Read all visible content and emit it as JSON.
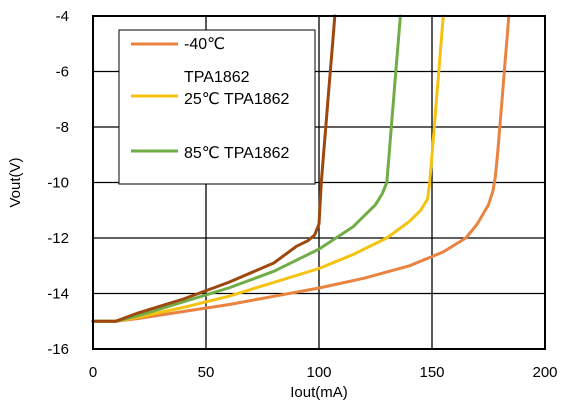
{
  "chart_data": {
    "type": "line",
    "title": "",
    "xlabel": "Iout(mA)",
    "ylabel": "Vout(V)",
    "xlim": [
      0,
      200
    ],
    "ylim": [
      -16,
      -4
    ],
    "xticks": [
      0,
      50,
      100,
      150,
      200
    ],
    "yticks": [
      -4,
      -6,
      -8,
      -10,
      -12,
      -14,
      -16
    ],
    "grid": true,
    "legend_position": "top-left",
    "series": [
      {
        "name": "-40℃ TPA1862",
        "color": "#e9833f",
        "points": [
          [
            0,
            -15
          ],
          [
            10,
            -15
          ],
          [
            20,
            -14.9
          ],
          [
            40,
            -14.65
          ],
          [
            60,
            -14.4
          ],
          [
            80,
            -14.1
          ],
          [
            100,
            -13.8
          ],
          [
            120,
            -13.45
          ],
          [
            140,
            -13.0
          ],
          [
            155,
            -12.5
          ],
          [
            165,
            -12.0
          ],
          [
            170,
            -11.5
          ],
          [
            175,
            -10.8
          ],
          [
            177,
            -10.3
          ],
          [
            178,
            -9.8
          ],
          [
            179,
            -9
          ],
          [
            180,
            -8
          ],
          [
            181,
            -7
          ],
          [
            182,
            -6
          ],
          [
            183,
            -5
          ],
          [
            184,
            -4
          ]
        ]
      },
      {
        "name": "25℃ TPA1862",
        "color": "#f5c210",
        "points": [
          [
            0,
            -15
          ],
          [
            10,
            -15
          ],
          [
            20,
            -14.85
          ],
          [
            40,
            -14.5
          ],
          [
            60,
            -14.1
          ],
          [
            80,
            -13.6
          ],
          [
            100,
            -13.1
          ],
          [
            115,
            -12.6
          ],
          [
            130,
            -12.0
          ],
          [
            140,
            -11.4
          ],
          [
            145,
            -11.0
          ],
          [
            148,
            -10.6
          ],
          [
            149,
            -10.0
          ],
          [
            150,
            -9
          ],
          [
            151,
            -8
          ],
          [
            152,
            -7
          ],
          [
            153,
            -6
          ],
          [
            154,
            -5
          ],
          [
            155,
            -4
          ]
        ]
      },
      {
        "name": "85℃ TPA1862",
        "color": "#70ad47",
        "points": [
          [
            0,
            -15
          ],
          [
            10,
            -15
          ],
          [
            20,
            -14.8
          ],
          [
            40,
            -14.3
          ],
          [
            60,
            -13.8
          ],
          [
            80,
            -13.2
          ],
          [
            100,
            -12.4
          ],
          [
            115,
            -11.6
          ],
          [
            125,
            -10.8
          ],
          [
            128,
            -10.4
          ],
          [
            130,
            -10.0
          ],
          [
            131,
            -9
          ],
          [
            132,
            -8
          ],
          [
            133,
            -7
          ],
          [
            134,
            -6
          ],
          [
            135,
            -5
          ],
          [
            136,
            -4
          ]
        ]
      },
      {
        "name": "",
        "color": "#9e480e",
        "points": [
          [
            0,
            -15
          ],
          [
            10,
            -15
          ],
          [
            20,
            -14.7
          ],
          [
            40,
            -14.2
          ],
          [
            60,
            -13.6
          ],
          [
            80,
            -12.9
          ],
          [
            90,
            -12.3
          ],
          [
            95,
            -12.1
          ],
          [
            98,
            -11.9
          ],
          [
            100,
            -11.5
          ],
          [
            101,
            -10
          ],
          [
            102,
            -9
          ],
          [
            103,
            -8
          ],
          [
            104,
            -7
          ],
          [
            105,
            -6
          ],
          [
            106,
            -5
          ],
          [
            107,
            -4
          ]
        ]
      }
    ],
    "legend_entries": [
      {
        "label": "-40℃",
        "color": "#e9833f"
      },
      {
        "label": "TPA1862\n25℃ TPA1862",
        "color": "#f5c210"
      },
      {
        "label": "85℃ TPA1862",
        "color": "#70ad47"
      }
    ]
  }
}
